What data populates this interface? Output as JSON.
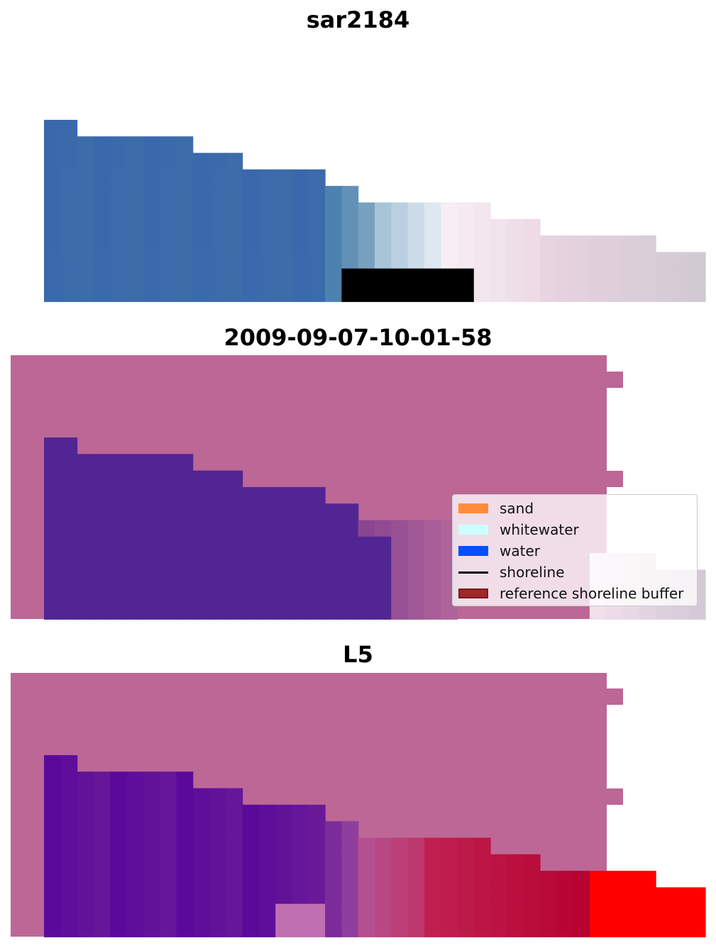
{
  "panels": [
    {
      "title": "sar2184"
    },
    {
      "title": "2009-09-07-10-01-58"
    },
    {
      "title": "L5"
    }
  ],
  "legend": {
    "items": [
      {
        "label": "sand",
        "color": "#ff8c3c",
        "kind": "patch"
      },
      {
        "label": "whitewater",
        "color": "#ccffff",
        "kind": "patch"
      },
      {
        "label": "water",
        "color": "#0050ff",
        "kind": "patch"
      },
      {
        "label": "shoreline",
        "color": "#000000",
        "kind": "line"
      },
      {
        "label": "reference shoreline buffer",
        "color": "#a02828",
        "kind": "patch"
      }
    ]
  },
  "colors": {
    "buffer_pink": "#bc6796",
    "water_purple": "#522594",
    "sar_blue": "#3c6aad",
    "red_land": "#ff0000"
  }
}
